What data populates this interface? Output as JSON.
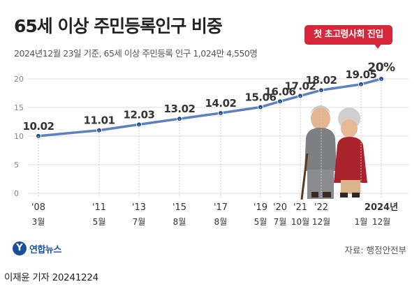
{
  "header": {
    "title": "65세 이상 주민등록인구 비중",
    "subtitle": "2024년12월 23일 기준, 65세 이상 주민등록 인구 1,024만 4,550명"
  },
  "callout": {
    "text": "첫 초고령사회 진입"
  },
  "footer": {
    "logo_mark": "Y",
    "logo_text": "연합뉴스",
    "source": "자료: 행정안전부",
    "credit": "이재윤 기자  20241224"
  },
  "colors": {
    "line": "#5a82c2",
    "grid": "#dddddd",
    "callout": "#d6283a",
    "text": "#333333"
  },
  "chart_data": {
    "type": "line",
    "title": "65세 이상 주민등록인구 비중",
    "xlabel": "",
    "ylabel": "",
    "ylim": [
      0,
      20
    ],
    "yticks": [
      0,
      5,
      10,
      15,
      20
    ],
    "grid": true,
    "x": [
      "2008-03",
      "2011-05",
      "2013-07",
      "2015-08",
      "2017-08",
      "2019-05",
      "2020-07",
      "2021-10",
      "2022-12",
      "2024-01",
      "2024-12"
    ],
    "x_year_labels": [
      "'08",
      "'11",
      "'13",
      "'15",
      "'17",
      "'19",
      "'20",
      "'21",
      "'22",
      "",
      "2024년"
    ],
    "x_month_labels": [
      "3월",
      "5월",
      "7월",
      "8월",
      "8월",
      "5월",
      "7월",
      "10월",
      "12월",
      "1월",
      "12월"
    ],
    "values": [
      10.02,
      11.01,
      12.03,
      13.02,
      14.02,
      15.06,
      16.06,
      17.02,
      18.02,
      19.05,
      20
    ],
    "data_labels": [
      "10.02",
      "11.01",
      "12.03",
      "13.02",
      "14.02",
      "15.06",
      "16.06",
      "17.02",
      "18.02",
      "19.05",
      "20%"
    ]
  }
}
